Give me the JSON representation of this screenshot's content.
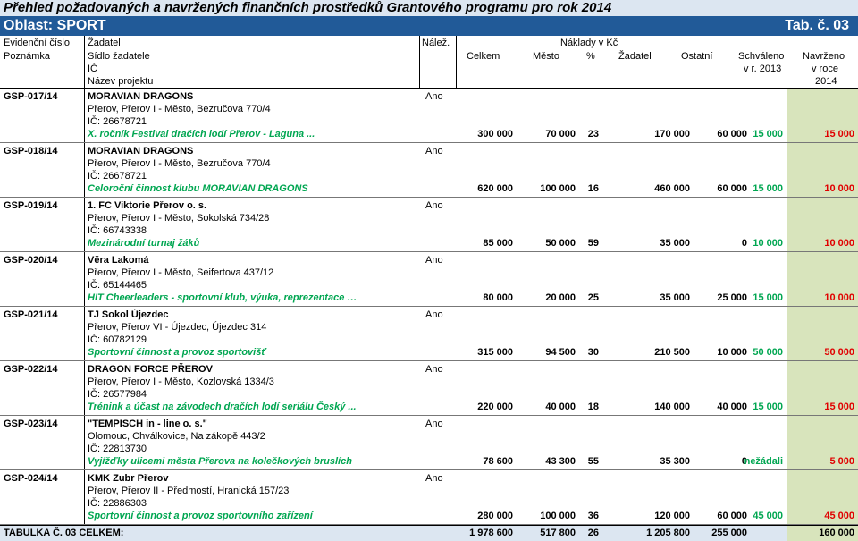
{
  "title": "Přehled požadovaných a navržených finančních prostředků Grantového programu pro rok 2014",
  "oblast": "Oblast: SPORT",
  "tab": "Tab. č. 03",
  "header": {
    "evid": "Evidenční číslo",
    "poznamka": "Poznámka",
    "zadatel": "Žadatel",
    "sidlo": "Sídlo žadatele",
    "ic": "IČ",
    "nazev": "Název projektu",
    "nalez": "Nálež.",
    "naklady": "Náklady v Kč",
    "celkem": "Celkem",
    "mesto": "Město",
    "pct": "%",
    "zadatel2": "Žadatel",
    "ostatni": "Ostatní",
    "schvaleno": "Schváleno",
    "schvaleno2": "v r. 2013",
    "navrzeno": "Navrženo",
    "navrzeno2": "v roce",
    "navrzeno3": "2014"
  },
  "records": [
    {
      "id": "GSP-017/14",
      "name": "MORAVIAN DRAGONS",
      "address": "Přerov, Přerov I - Město, Bezručova 770/4",
      "ic": "IČ: 26678721",
      "project": "X. ročník Festival dračích lodí Přerov - Laguna ...",
      "nalez": "Ano",
      "celkem": "300 000",
      "mesto": "70 000",
      "pct": "23",
      "zadatel": "170 000",
      "ostatni": "60 000",
      "schvaleno": "15 000",
      "navrzeno": "15 000"
    },
    {
      "id": "GSP-018/14",
      "name": "MORAVIAN DRAGONS",
      "address": "Přerov, Přerov I - Město, Bezručova 770/4",
      "ic": "IČ: 26678721",
      "project": "Celoroční činnost klubu MORAVIAN DRAGONS",
      "nalez": "Ano",
      "celkem": "620 000",
      "mesto": "100 000",
      "pct": "16",
      "zadatel": "460 000",
      "ostatni": "60 000",
      "schvaleno": "15 000",
      "navrzeno": "10 000"
    },
    {
      "id": "GSP-019/14",
      "name": "1. FC Viktorie Přerov o. s.",
      "address": "Přerov, Přerov I - Město, Sokolská 734/28",
      "ic": "IČ: 66743338",
      "project": "Mezinárodní turnaj žáků",
      "nalez": "Ano",
      "celkem": "85 000",
      "mesto": "50 000",
      "pct": "59",
      "zadatel": "35 000",
      "ostatni": "0",
      "schvaleno": "10 000",
      "navrzeno": "10 000"
    },
    {
      "id": "GSP-020/14",
      "name": "Věra Lakomá",
      "address": "Přerov, Přerov I - Město, Seifertova 437/12",
      "ic": "IČ: 65144465",
      "project": "HIT Cheerleaders - sportovní klub, výuka, reprezentace …",
      "nalez": "Ano",
      "celkem": "80 000",
      "mesto": "20 000",
      "pct": "25",
      "zadatel": "35 000",
      "ostatni": "25 000",
      "schvaleno": "15 000",
      "navrzeno": "10 000"
    },
    {
      "id": "GSP-021/14",
      "name": "TJ Sokol Újezdec",
      "address": "Přerov, Přerov VI - Újezdec, Újezdec 314",
      "ic": "IČ: 60782129",
      "project": "Sportovní činnost a provoz sportovišť",
      "nalez": "Ano",
      "celkem": "315 000",
      "mesto": "94 500",
      "pct": "30",
      "zadatel": "210 500",
      "ostatni": "10 000",
      "schvaleno": "50 000",
      "navrzeno": "50 000"
    },
    {
      "id": "GSP-022/14",
      "name": "DRAGON FORCE PŘEROV",
      "address": "Přerov, Přerov I - Město, Kozlovská 1334/3",
      "ic": "IČ: 26577984",
      "project": "Trénink a účast na závodech dračích lodí seriálu Český ...",
      "nalez": "Ano",
      "celkem": "220 000",
      "mesto": "40 000",
      "pct": "18",
      "zadatel": "140 000",
      "ostatni": "40 000",
      "schvaleno": "15 000",
      "navrzeno": "15 000"
    },
    {
      "id": "GSP-023/14",
      "name": "\"TEMPISCH in - line o. s.\"",
      "address": "Olomouc, Chválkovice, Na zákopě 443/2",
      "ic": "IČ: 22813730",
      "project": "Vyjížďky ulicemi města Přerova na kolečkových bruslích",
      "nalez": "Ano",
      "celkem": "78 600",
      "mesto": "43 300",
      "pct": "55",
      "zadatel": "35 300",
      "ostatni": "0",
      "schvaleno": "nežádali",
      "navrzeno": "5 000"
    },
    {
      "id": "GSP-024/14",
      "name": "KMK Zubr Přerov",
      "address": "Přerov, Přerov II - Předmostí, Hranická 157/23",
      "ic": "IČ: 22886303",
      "project": "Sportovní činnost a provoz sportovního zařízení",
      "nalez": "Ano",
      "celkem": "280 000",
      "mesto": "100 000",
      "pct": "36",
      "zadatel": "120 000",
      "ostatni": "60 000",
      "schvaleno": "45 000",
      "navrzeno": "45 000"
    }
  ],
  "total": {
    "label": "TABULKA Č. 03 CELKEM:",
    "celkem": "1 978 600",
    "mesto": "517 800",
    "pct": "26",
    "zadatel": "1 205 800",
    "ostatni": "255 000",
    "navrzeno": "160 000"
  }
}
